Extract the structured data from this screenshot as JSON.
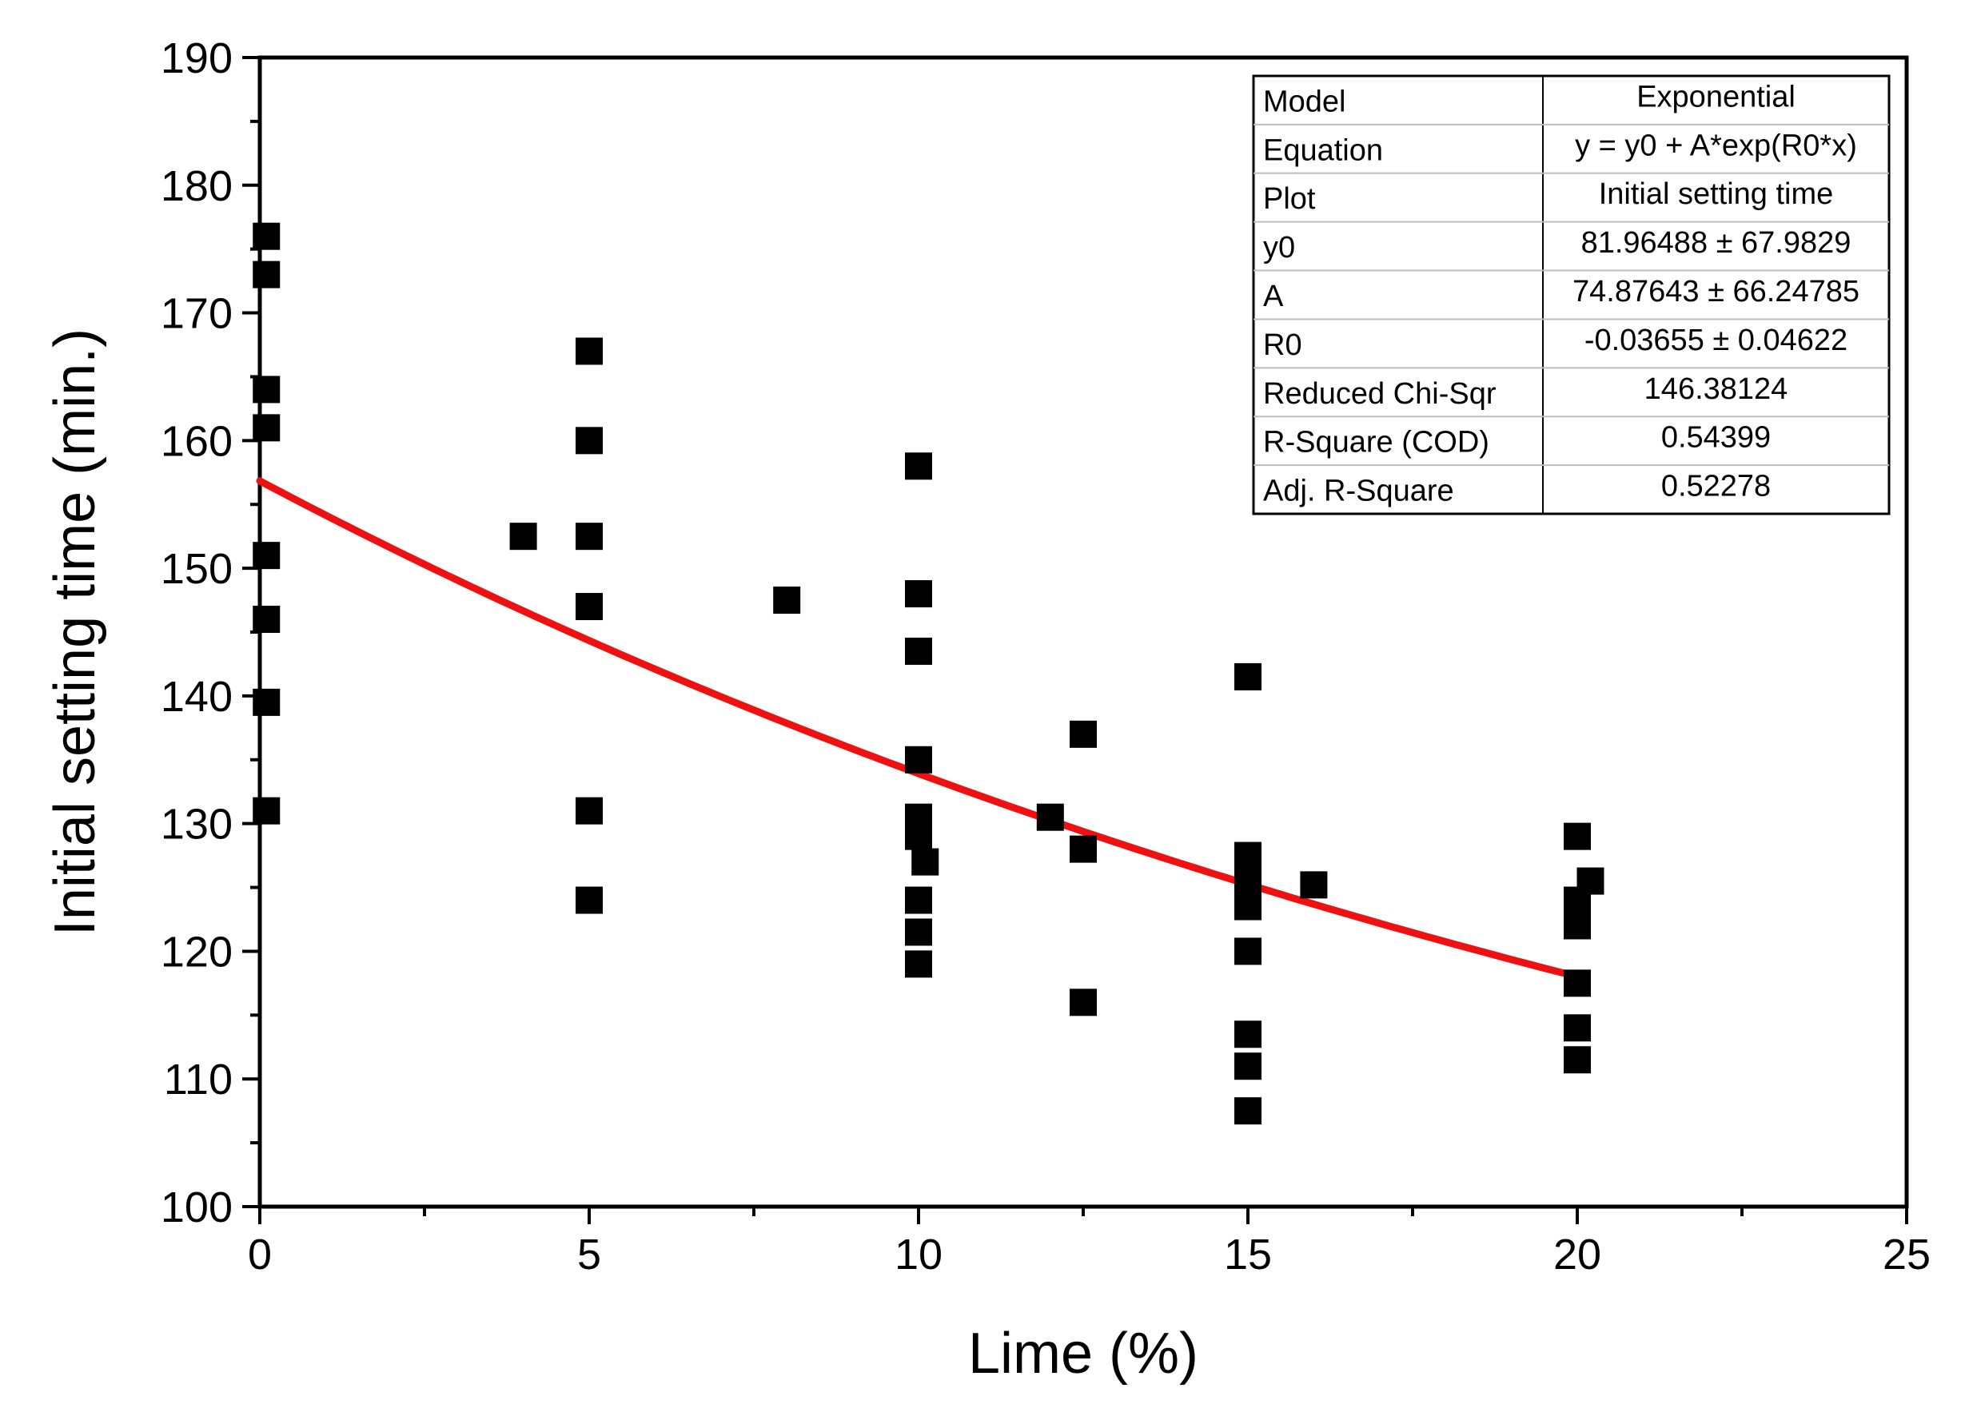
{
  "colors": {
    "points": "#000000",
    "fit_line": "#ee1111",
    "axis": "#000000",
    "table_border": "#bdbdbd"
  },
  "chart_data": {
    "type": "scatter",
    "title": "",
    "xlabel": "Lime (%)",
    "ylabel": "Initial setting time (min.)",
    "xlim": [
      0,
      25
    ],
    "ylim": [
      100,
      190
    ],
    "xticks": [
      0,
      5,
      10,
      15,
      20,
      25
    ],
    "xtick_labels": [
      "0",
      "5",
      "10",
      "15",
      "20",
      "25"
    ],
    "yticks": [
      100,
      110,
      120,
      130,
      140,
      150,
      160,
      170,
      180,
      190
    ],
    "ytick_labels": [
      "100",
      "110",
      "120",
      "130",
      "140",
      "150",
      "160",
      "170",
      "180",
      "190"
    ],
    "grid": false,
    "series": [
      {
        "name": "Initial setting time",
        "marker": "square",
        "points": [
          {
            "x": 0.1,
            "y": 176
          },
          {
            "x": 0.1,
            "y": 173
          },
          {
            "x": 0.1,
            "y": 164
          },
          {
            "x": 0.1,
            "y": 161
          },
          {
            "x": 0.1,
            "y": 151
          },
          {
            "x": 0.1,
            "y": 146
          },
          {
            "x": 0.1,
            "y": 139.5
          },
          {
            "x": 0.1,
            "y": 131
          },
          {
            "x": 4.0,
            "y": 152.5
          },
          {
            "x": 5.0,
            "y": 167
          },
          {
            "x": 5.0,
            "y": 160
          },
          {
            "x": 5.0,
            "y": 152.5
          },
          {
            "x": 5.0,
            "y": 147
          },
          {
            "x": 5.0,
            "y": 131
          },
          {
            "x": 5.0,
            "y": 124
          },
          {
            "x": 8.0,
            "y": 147.5
          },
          {
            "x": 10.0,
            "y": 158
          },
          {
            "x": 10.0,
            "y": 148
          },
          {
            "x": 10.0,
            "y": 143.5
          },
          {
            "x": 10.0,
            "y": 135
          },
          {
            "x": 10.0,
            "y": 130.5
          },
          {
            "x": 10.0,
            "y": 129
          },
          {
            "x": 10.1,
            "y": 127
          },
          {
            "x": 10.0,
            "y": 124
          },
          {
            "x": 10.0,
            "y": 121.5
          },
          {
            "x": 10.0,
            "y": 119
          },
          {
            "x": 12.0,
            "y": 130.5
          },
          {
            "x": 12.5,
            "y": 137
          },
          {
            "x": 12.5,
            "y": 128
          },
          {
            "x": 12.5,
            "y": 116
          },
          {
            "x": 15.0,
            "y": 141.5
          },
          {
            "x": 15.0,
            "y": 127.5
          },
          {
            "x": 15.0,
            "y": 125.5
          },
          {
            "x": 15.0,
            "y": 123.5
          },
          {
            "x": 15.0,
            "y": 120
          },
          {
            "x": 15.0,
            "y": 113.5
          },
          {
            "x": 15.0,
            "y": 111
          },
          {
            "x": 15.0,
            "y": 107.5
          },
          {
            "x": 16.0,
            "y": 125.2
          },
          {
            "x": 20.0,
            "y": 129
          },
          {
            "x": 20.2,
            "y": 125.5
          },
          {
            "x": 20.0,
            "y": 124
          },
          {
            "x": 20.0,
            "y": 122
          },
          {
            "x": 20.0,
            "y": 117.5
          },
          {
            "x": 20.0,
            "y": 114
          },
          {
            "x": 20.0,
            "y": 111.5
          }
        ]
      }
    ],
    "fit": {
      "model": "exponential",
      "y0": 81.96488,
      "A": 74.87643,
      "R0": -0.03655,
      "x_range": [
        0,
        20
      ]
    },
    "fit_table": {
      "rows": [
        {
          "label": "Model",
          "value": "Exponential"
        },
        {
          "label": "Equation",
          "value": "y = y0 + A*exp(R0*x)"
        },
        {
          "label": "Plot",
          "value": "Initial setting time"
        },
        {
          "label": "y0",
          "value": "81.96488 ± 67.9829"
        },
        {
          "label": "A",
          "value": "74.87643 ± 66.24785"
        },
        {
          "label": "R0",
          "value": "-0.03655 ± 0.04622"
        },
        {
          "label": "Reduced Chi-Sqr",
          "value": "146.38124"
        },
        {
          "label": "R-Square (COD)",
          "value": "0.54399"
        },
        {
          "label": "Adj. R-Square",
          "value": "0.52278"
        }
      ]
    }
  }
}
